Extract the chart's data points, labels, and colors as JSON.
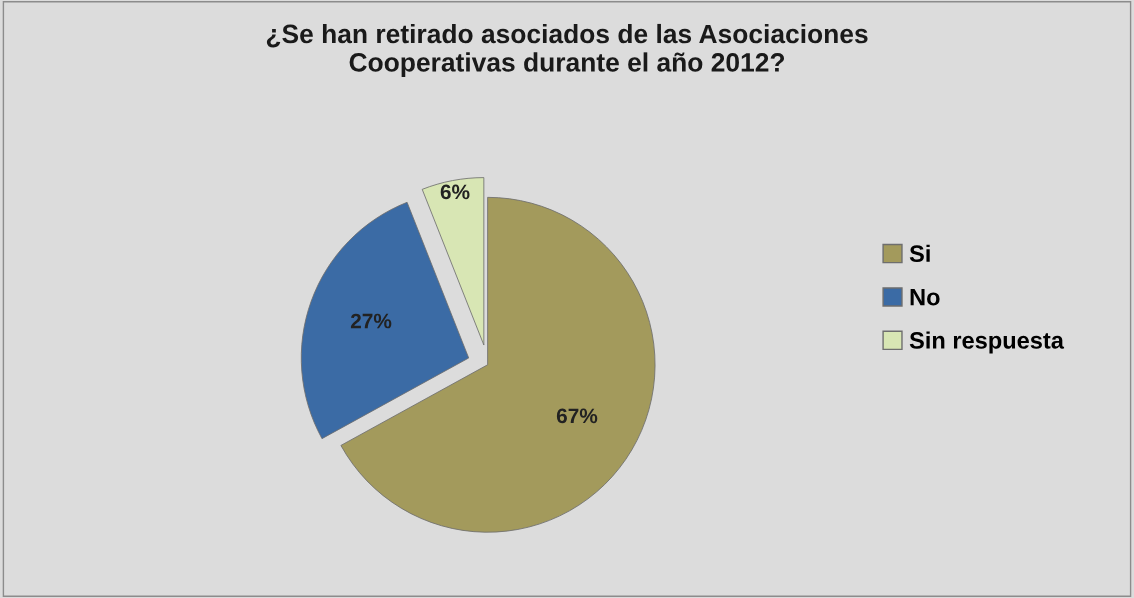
{
  "chart_data": {
    "type": "pie",
    "title": "¿Se han retirado asociados de las Asociaciones\nCooperativas durante el año 2012?",
    "categories": [
      "Si",
      "No",
      "Sin respuesta"
    ],
    "values": [
      67,
      27,
      6
    ],
    "value_labels": [
      "67%",
      "27%",
      "6%"
    ],
    "colors": [
      "#a39a5c",
      "#3b6ba5",
      "#d8e6b4"
    ],
    "legend": "right"
  }
}
